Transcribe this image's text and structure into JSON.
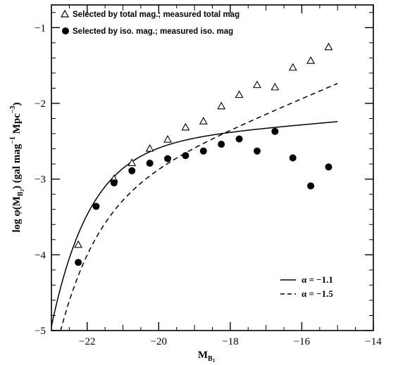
{
  "chart_data": {
    "type": "scatter",
    "xlim": [
      -23,
      -14
    ],
    "ylim": [
      -5,
      -0.7
    ],
    "x_ticks": [
      -22,
      -20,
      -18,
      -16,
      -14
    ],
    "y_ticks": [
      -5,
      -4,
      -3,
      -2,
      -1
    ],
    "x_tick_labels": [
      "−22",
      "−20",
      "−18",
      "−16",
      "−14"
    ],
    "y_tick_labels": [
      "−5",
      "−4",
      "−3",
      "−2",
      "−1"
    ],
    "xlabel_main": "M",
    "xlabel_sub": "B",
    "xlabel_subsub": "J",
    "ylabel_prefix": "log φ(M",
    "ylabel_sub": "B",
    "ylabel_subsub": "J",
    "ylabel_mid": ")  (gal mag",
    "ylabel_exp1": "−1",
    "ylabel_unit": " Mpc",
    "ylabel_exp2": "−3",
    "ylabel_end": ")",
    "legend_position": "top-left",
    "series": [
      {
        "name": "Selected by total mag.; measured total mag",
        "marker": "open-triangle",
        "x": [
          -22.25,
          -21.25,
          -20.75,
          -20.25,
          -19.75,
          -19.25,
          -18.75,
          -18.25,
          -17.75,
          -17.25,
          -16.75,
          -16.25,
          -15.75,
          -15.25
        ],
        "y": [
          -3.87,
          -3.0,
          -2.79,
          -2.6,
          -2.48,
          -2.32,
          -2.24,
          -2.04,
          -1.89,
          -1.76,
          -1.79,
          -1.53,
          -1.44,
          -1.26
        ]
      },
      {
        "name": "Selected by iso. mag.; measured iso. mag",
        "marker": "filled-circle",
        "x": [
          -22.25,
          -21.75,
          -21.25,
          -20.75,
          -20.25,
          -19.75,
          -19.25,
          -18.75,
          -18.25,
          -17.75,
          -17.25,
          -16.75,
          -16.25,
          -15.75,
          -15.25
        ],
        "y": [
          -4.1,
          -3.36,
          -3.05,
          -2.89,
          -2.79,
          -2.73,
          -2.69,
          -2.63,
          -2.54,
          -2.47,
          -2.63,
          -2.37,
          -2.72,
          -3.09,
          -2.84
        ]
      }
    ],
    "curves": [
      {
        "name": "α = −1.1",
        "style": "solid",
        "alpha": -1.1,
        "mstar": -21.15,
        "logphistar": -2.45
      },
      {
        "name": "α = −1.5",
        "style": "dashed",
        "alpha": -1.5,
        "mstar": -21.25,
        "logphistar": -2.95
      }
    ],
    "curve_x_range": [
      -23,
      -15
    ]
  }
}
